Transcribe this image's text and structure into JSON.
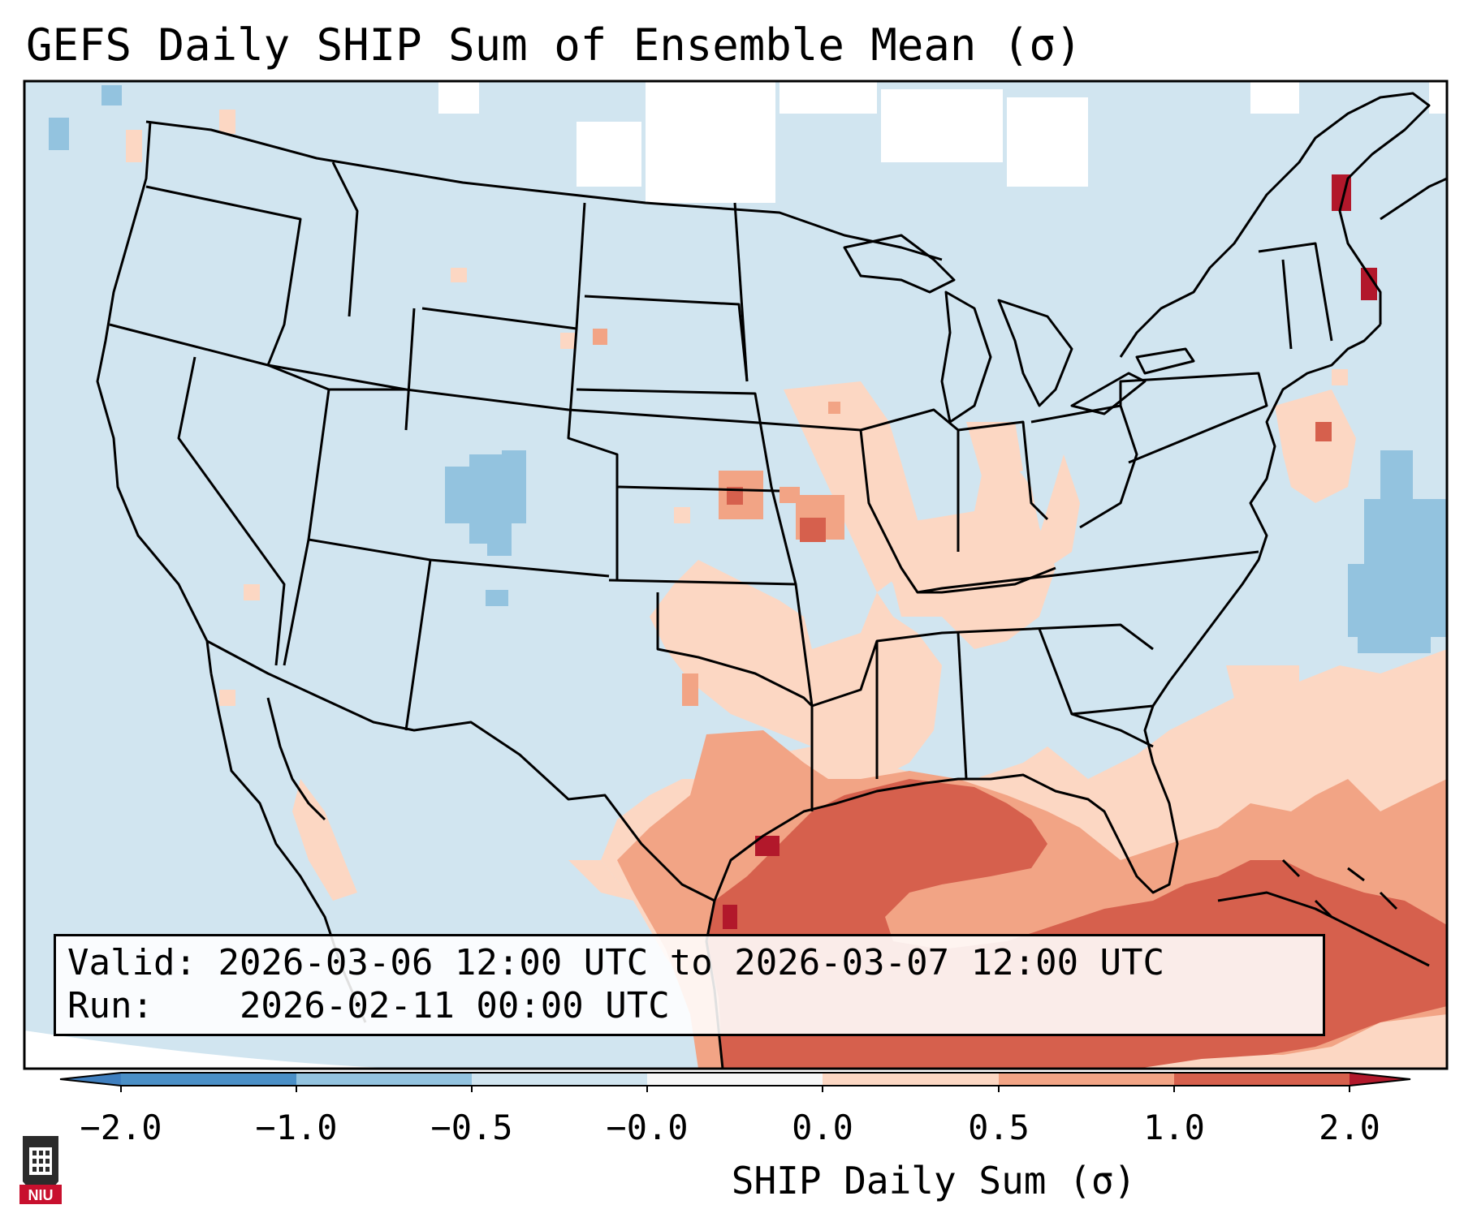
{
  "title": "GEFS Daily SHIP Sum of Ensemble Mean (σ)",
  "info": {
    "valid_label": "Valid:",
    "valid_value": "2026-03-06 12:00 UTC to 2026-03-07 12:00 UTC",
    "run_label": "Run:",
    "run_value": "2026-02-11 00:00 UTC"
  },
  "colorbar": {
    "label": "SHIP Daily Sum (σ)",
    "ticks": [
      "−2.0",
      "−1.0",
      "−0.5",
      "−0.0",
      "0.0",
      "0.5",
      "1.0",
      "2.0"
    ],
    "colors": {
      "below_min": "#3f7fbf",
      "bin_neg2_neg1": "#4a8fc6",
      "bin_neg1_neg05": "#93c3df",
      "bin_neg05_0": "#d1e5f0",
      "bin_0": "#f7f7f7",
      "bin_0_05": "#fcd7c3",
      "bin_05_1": "#f2a485",
      "bin_1_2": "#d6604d",
      "above_max": "#b2182b"
    }
  },
  "map": {
    "region": "Continental United States",
    "background_value_color": "#d1e5f0",
    "border_color": "#000000"
  },
  "logo": {
    "text": "NIU",
    "color": "#c8102e"
  }
}
